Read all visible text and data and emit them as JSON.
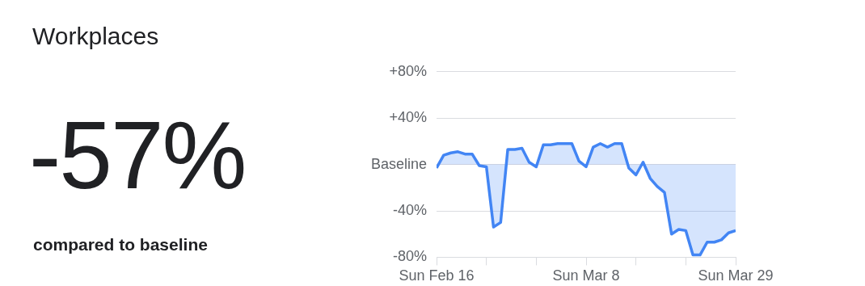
{
  "chart_data": {
    "type": "area",
    "title": "Workplaces",
    "annotations": [
      "-57%",
      "compared to baseline"
    ],
    "x": [
      "--02-16",
      "--02-17",
      "--02-18",
      "--02-19",
      "--02-20",
      "--02-21",
      "--02-22",
      "--02-23",
      "--02-24",
      "--02-25",
      "--02-26",
      "--02-27",
      "--02-28",
      "--02-29",
      "--03-01",
      "--03-02",
      "--03-03",
      "--03-04",
      "--03-05",
      "--03-06",
      "--03-07",
      "--03-08",
      "--03-09",
      "--03-10",
      "--03-11",
      "--03-12",
      "--03-13",
      "--03-14",
      "--03-15",
      "--03-16",
      "--03-17",
      "--03-18",
      "--03-19",
      "--03-20",
      "--03-21",
      "--03-22",
      "--03-23",
      "--03-24",
      "--03-25",
      "--03-26",
      "--03-27",
      "--03-28",
      "--03-29"
    ],
    "series": [
      {
        "color": "#4285f4",
        "values": [
          -3,
          8,
          10,
          11,
          9,
          9,
          -1,
          -2,
          -54,
          -50,
          13,
          13,
          14,
          2,
          -2,
          17,
          17,
          18,
          18,
          18,
          3,
          -2,
          15,
          18,
          15,
          18,
          18,
          -3,
          -9,
          2,
          -12,
          -19,
          -24,
          -60,
          -56,
          -57,
          -78,
          -78,
          -67,
          -67,
          -65,
          -59,
          -57
        ]
      }
    ],
    "xlim": [
      "--02-16",
      "--03-29"
    ],
    "xticks": [
      {
        "value": "--02-16",
        "label": "Sun Feb 16"
      },
      {
        "value": "--02-23",
        "label": null
      },
      {
        "value": "--03-01",
        "label": null
      },
      {
        "value": "--03-08",
        "label": "Sun Mar 8"
      },
      {
        "value": "--03-15",
        "label": null
      },
      {
        "value": "--03-22",
        "label": null
      },
      {
        "value": "--03-29",
        "label": "Sun Mar 29"
      }
    ],
    "ylim": [
      -80,
      80
    ],
    "yticks": [
      {
        "value": -80,
        "label": "-80%"
      },
      {
        "value": -40,
        "label": "-40%"
      },
      {
        "value": 0,
        "label": "Baseline"
      },
      {
        "value": 40,
        "label": "+40%"
      },
      {
        "value": 80,
        "label": "+80%"
      }
    ],
    "grid": "y",
    "legend": false
  }
}
